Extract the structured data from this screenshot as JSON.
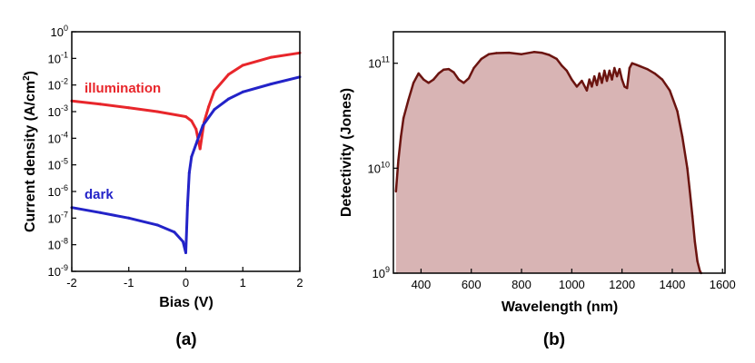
{
  "chart_data": [
    {
      "type": "line",
      "panel_label": "(a)",
      "xlabel": "Bias (V)",
      "ylabel": "Current density (A/cm",
      "ylabel_sup": "2",
      "ylabel_tail": ")",
      "xlim": [
        -2,
        2
      ],
      "ylim_log10": [
        -9,
        0
      ],
      "yscale": "log",
      "x_ticks": [
        "-2",
        "-1",
        "0",
        "1",
        "2"
      ],
      "y_tick_base": "10",
      "y_tick_exponents": [
        "0",
        "-1",
        "-2",
        "-3",
        "-4",
        "-5",
        "-6",
        "-7",
        "-8",
        "-9"
      ],
      "grid": false,
      "colors": {
        "illumination": "#e8262b",
        "dark": "#2323c8"
      },
      "series": [
        {
          "name": "illumination",
          "x": [
            -2.0,
            -1.5,
            -1.0,
            -0.5,
            0.0,
            0.1,
            0.18,
            0.25,
            0.32,
            0.4,
            0.5,
            0.75,
            1.0,
            1.5,
            2.0
          ],
          "y": [
            0.0025,
            0.0019,
            0.0014,
            0.001,
            0.00065,
            0.00045,
            0.00022,
            4e-05,
            0.0004,
            0.0015,
            0.006,
            0.025,
            0.055,
            0.11,
            0.16
          ]
        },
        {
          "name": "dark",
          "x": [
            -2.0,
            -1.5,
            -1.0,
            -0.5,
            -0.2,
            -0.05,
            0.0,
            0.03,
            0.06,
            0.1,
            0.2,
            0.3,
            0.5,
            0.75,
            1.0,
            1.5,
            2.0
          ],
          "y": [
            2.5e-07,
            1.6e-07,
            1e-07,
            5.5e-08,
            3e-08,
            1.3e-08,
            5e-09,
            3e-07,
            5e-06,
            2e-05,
            8e-05,
            0.0003,
            0.0012,
            0.003,
            0.0055,
            0.011,
            0.02
          ]
        }
      ]
    },
    {
      "type": "area",
      "panel_label": "(b)",
      "xlabel": "Wavelength (nm)",
      "ylabel": "Detectivity (Jones)",
      "xlim": [
        290,
        1610
      ],
      "ylim_log10": [
        9,
        11.3
      ],
      "yscale": "log",
      "x_ticks": [
        "400",
        "600",
        "800",
        "1000",
        "1200",
        "1400",
        "1600"
      ],
      "y_tick_base": "10",
      "y_tick_exponents": [
        "11",
        "10",
        "9"
      ],
      "grid": false,
      "colors": {
        "line": "#6b1410",
        "fill": "#d8b4b4"
      },
      "series": [
        {
          "x": [
            300,
            310,
            320,
            330,
            350,
            370,
            390,
            410,
            430,
            450,
            470,
            490,
            510,
            530,
            550,
            570,
            590,
            610,
            640,
            670,
            700,
            750,
            800,
            850,
            880,
            910,
            940,
            960,
            980,
            1000,
            1020,
            1040,
            1060,
            1070,
            1080,
            1090,
            1100,
            1110,
            1120,
            1130,
            1140,
            1150,
            1160,
            1170,
            1180,
            1190,
            1200,
            1210,
            1220,
            1230,
            1240,
            1250,
            1260,
            1270,
            1300,
            1330,
            1360,
            1390,
            1420,
            1440,
            1460,
            1470,
            1480,
            1490,
            1500,
            1510,
            1515
          ],
          "y": [
            6000000000.0,
            12000000000.0,
            20000000000.0,
            30000000000.0,
            45000000000.0,
            65000000000.0,
            80000000000.0,
            70000000000.0,
            65000000000.0,
            70000000000.0,
            80000000000.0,
            87000000000.0,
            88000000000.0,
            82000000000.0,
            70000000000.0,
            65000000000.0,
            72000000000.0,
            90000000000.0,
            110000000000.0,
            122000000000.0,
            125000000000.0,
            126000000000.0,
            122000000000.0,
            128000000000.0,
            126000000000.0,
            120000000000.0,
            110000000000.0,
            95000000000.0,
            85000000000.0,
            70000000000.0,
            60000000000.0,
            68000000000.0,
            55000000000.0,
            70000000000.0,
            60000000000.0,
            75000000000.0,
            62000000000.0,
            80000000000.0,
            65000000000.0,
            85000000000.0,
            68000000000.0,
            85000000000.0,
            70000000000.0,
            90000000000.0,
            75000000000.0,
            88000000000.0,
            70000000000.0,
            60000000000.0,
            58000000000.0,
            90000000000.0,
            100000000000.0,
            98000000000.0,
            96000000000.0,
            94000000000.0,
            88000000000.0,
            80000000000.0,
            70000000000.0,
            55000000000.0,
            35000000000.0,
            20000000000.0,
            10000000000.0,
            6000000000.0,
            3500000000.0,
            2000000000.0,
            1300000000.0,
            1050000000.0,
            1000000000.0
          ]
        }
      ]
    }
  ]
}
